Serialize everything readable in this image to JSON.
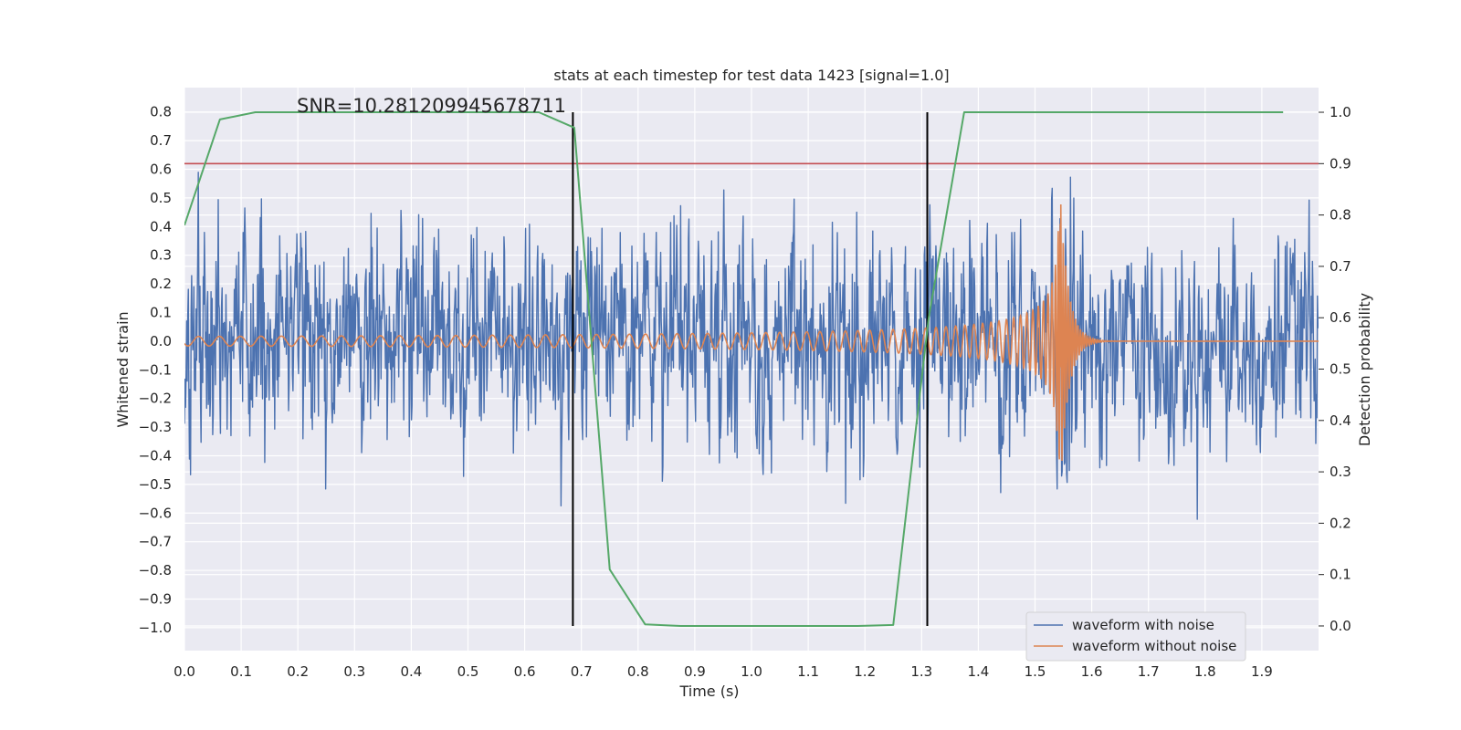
{
  "chart_data": {
    "type": "line",
    "title": "stats at each timestep for test data 1423 [signal=1.0]",
    "xlabel": "Time (s)",
    "ylabel": "Whitened strain",
    "ylabel_right": "Detection probability",
    "annotation": "SNR=10.281209945678711",
    "xlim": [
      0.0,
      2.0
    ],
    "ylim": [
      -1.08,
      0.885
    ],
    "ylim_right": [
      -0.048,
      1.048
    ],
    "x_ticks": [
      "0.0",
      "0.1",
      "0.2",
      "0.3",
      "0.4",
      "0.5",
      "0.6",
      "0.7",
      "0.8",
      "0.9",
      "1.0",
      "1.1",
      "1.2",
      "1.3",
      "1.4",
      "1.5",
      "1.6",
      "1.7",
      "1.8",
      "1.9"
    ],
    "y_ticks": [
      "0.8",
      "0.7",
      "0.6",
      "0.5",
      "0.4",
      "0.3",
      "0.2",
      "0.1",
      "0.0",
      "−0.1",
      "−0.2",
      "−0.3",
      "−0.4",
      "−0.5",
      "−0.6",
      "−0.7",
      "−0.8",
      "−0.9",
      "−1.0"
    ],
    "y_ticks_right": [
      "1.0",
      "0.9",
      "0.8",
      "0.7",
      "0.6",
      "0.5",
      "0.4",
      "0.3",
      "0.2",
      "0.1",
      "0.0"
    ],
    "threshold_line": {
      "axis": "right",
      "value": 0.9,
      "color": "#c44e52"
    },
    "vertical_markers": [
      0.685,
      1.31
    ],
    "series": [
      {
        "name": "waveform with noise",
        "color": "#4c72b0",
        "axis": "left",
        "description": "noisy whitened strain, approx ±0.8",
        "duration": 2.0,
        "samples": 2048
      },
      {
        "name": "waveform without noise",
        "color": "#dd8452",
        "axis": "left",
        "description": "chirp signal rising in frequency/amplitude, merger near 1.54 s, amplitude ~0.45 peak"
      },
      {
        "name": "detection probability",
        "color": "#55a868",
        "axis": "right",
        "x": [
          0.0,
          0.0625,
          0.125,
          0.1875,
          0.25,
          0.3125,
          0.375,
          0.4375,
          0.5,
          0.5625,
          0.625,
          0.6875,
          0.75,
          0.8125,
          0.875,
          0.9375,
          1.0,
          1.0625,
          1.125,
          1.1875,
          1.25,
          1.3125,
          1.375,
          1.4375,
          1.5,
          1.5625,
          1.625,
          1.6875,
          1.75,
          1.8125,
          1.875,
          1.9375
        ],
        "values": [
          0.78,
          0.986,
          1.0,
          1.0,
          1.0,
          1.0,
          1.0,
          1.0,
          1.0,
          1.0,
          1.0,
          0.97,
          0.11,
          0.003,
          0.0,
          0.0,
          0.0,
          0.0,
          0.0,
          0.0,
          0.002,
          0.6,
          1.0,
          1.0,
          1.0,
          1.0,
          1.0,
          1.0,
          1.0,
          1.0,
          1.0,
          1.0
        ]
      }
    ],
    "legend": {
      "position": "lower-right",
      "entries": [
        "waveform with noise",
        "waveform without noise"
      ]
    },
    "grid": true
  }
}
